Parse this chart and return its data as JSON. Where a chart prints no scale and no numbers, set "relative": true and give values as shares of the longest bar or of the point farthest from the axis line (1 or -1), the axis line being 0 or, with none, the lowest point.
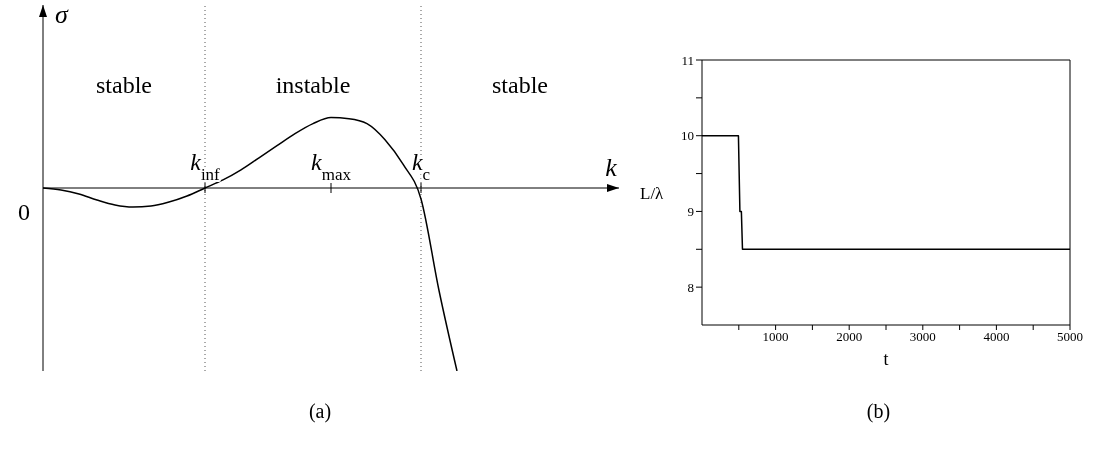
{
  "chart_data": [
    {
      "type": "line",
      "relative": true,
      "xlabel": "k",
      "ylabel": "σ",
      "color": "#000000",
      "categories": [
        null,
        null,
        null,
        null,
        null,
        null,
        null,
        null,
        null,
        "k$_{inf}$",
        null,
        null,
        null,
        null,
        null,
        null,
        "k$_{max}$",
        null,
        null,
        null,
        null,
        "k$_{c}$",
        null,
        null,
        null,
        null,
        null,
        null,
        null,
        null,
        null,
        null,
        null
      ],
      "values": [
        0,
        -0.011,
        -0.033,
        -0.066,
        -0.093,
        -0.104,
        -0.099,
        -0.077,
        -0.044,
        0,
        0.044,
        0.099,
        0.165,
        0.231,
        0.297,
        0.352,
        0.385,
        0.379,
        0.352,
        0.264,
        0.13,
        -0.06,
        -0.56,
        -1,
        null,
        null,
        null,
        null,
        null,
        null,
        null,
        null,
        null
      ],
      "ref_lines": [
        {
          "axis": "x",
          "value": "k$_{inf}$",
          "line_style": "dotted",
          "color": "#555555"
        },
        {
          "axis": "x",
          "value": "k$_{c}$",
          "line_style": "dotted",
          "color": "#555555"
        }
      ],
      "annotations": [
        "stable",
        "instable",
        "stable",
        "0",
        "(a)"
      ]
    },
    {
      "type": "line",
      "xlabel": "t",
      "ylabel": "L/λ",
      "color": "#000000",
      "x": [
        0,
        495,
        515,
        535,
        550,
        5000
      ],
      "values": [
        10,
        10,
        9,
        9,
        8.5,
        8.5
      ],
      "xlim": [
        0,
        5000
      ],
      "xticks": [
        {
          "value": 500,
          "label": null
        },
        1000,
        {
          "value": 1500,
          "label": null
        },
        2000,
        {
          "value": 2500,
          "label": null
        },
        3000,
        {
          "value": 3500,
          "label": null
        },
        4000,
        {
          "value": 4500,
          "label": null
        },
        5000
      ],
      "ylim": [
        7.5,
        11
      ],
      "yticks": [
        8,
        {
          "value": 8.5,
          "label": null
        },
        9,
        {
          "value": 9.5,
          "label": null
        },
        10,
        {
          "value": 10.5,
          "label": null
        },
        11
      ],
      "annotations": [
        "(b)"
      ]
    }
  ]
}
